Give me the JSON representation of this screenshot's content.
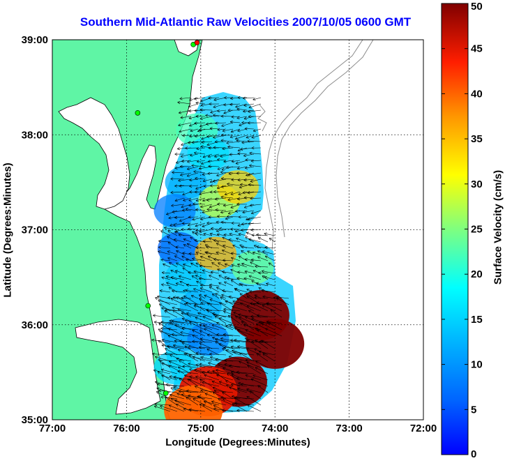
{
  "chart_data": {
    "type": "heatmap",
    "title": "Southern Mid-Atlantic Raw Velocities 2007/10/05 0600 GMT",
    "xlabel": "Longitude (Degrees:Minutes)",
    "ylabel": "Latitude (Degrees:Minutes)",
    "x_ticks": [
      {
        "value": -77,
        "label": "77:00"
      },
      {
        "value": -76,
        "label": "76:00"
      },
      {
        "value": -75,
        "label": "75:00"
      },
      {
        "value": -74,
        "label": "74:00"
      },
      {
        "value": -73,
        "label": "73:00"
      },
      {
        "value": -72,
        "label": "72:00"
      }
    ],
    "y_ticks": [
      {
        "value": 35,
        "label": "35:00"
      },
      {
        "value": 36,
        "label": "36:00"
      },
      {
        "value": 37,
        "label": "37:00"
      },
      {
        "value": 38,
        "label": "38:00"
      },
      {
        "value": 39,
        "label": "39:00"
      }
    ],
    "xlim": [
      -77,
      -72
    ],
    "ylim": [
      35,
      39
    ],
    "grid": true,
    "grid_style": "dotted",
    "colorbar": {
      "label": "Surface Velocity (cm/s)",
      "range": [
        0,
        50
      ],
      "ticks": [
        0,
        5,
        10,
        15,
        20,
        25,
        30,
        35,
        40,
        45,
        50
      ],
      "colormap": "jet",
      "placement": "right"
    },
    "land_color": "#5ff5a5",
    "coast_color": "#000000",
    "bathymetry_color": "#8c8c8c",
    "vector_color": "#000000",
    "velocity_regions": [
      {
        "lon": -75.05,
        "lat": 38.05,
        "speed": 22
      },
      {
        "lon": -74.9,
        "lat": 37.8,
        "speed": 16
      },
      {
        "lon": -75.2,
        "lat": 37.5,
        "speed": 12
      },
      {
        "lon": -75.35,
        "lat": 37.2,
        "speed": 8
      },
      {
        "lon": -74.75,
        "lat": 37.3,
        "speed": 28
      },
      {
        "lon": -74.5,
        "lat": 37.45,
        "speed": 34
      },
      {
        "lon": -75.3,
        "lat": 36.8,
        "speed": 6
      },
      {
        "lon": -75.2,
        "lat": 36.5,
        "speed": 14
      },
      {
        "lon": -74.8,
        "lat": 36.75,
        "speed": 36
      },
      {
        "lon": -74.3,
        "lat": 36.6,
        "speed": 24
      },
      {
        "lon": -75.0,
        "lat": 36.2,
        "speed": 12
      },
      {
        "lon": -75.25,
        "lat": 35.9,
        "speed": 11
      },
      {
        "lon": -74.9,
        "lat": 35.85,
        "speed": 8
      },
      {
        "lon": -75.35,
        "lat": 35.55,
        "speed": 15
      },
      {
        "lon": -74.2,
        "lat": 36.1,
        "speed": 50
      },
      {
        "lon": -74.0,
        "lat": 35.8,
        "speed": 50
      },
      {
        "lon": -74.5,
        "lat": 35.4,
        "speed": 50
      },
      {
        "lon": -74.9,
        "lat": 35.3,
        "speed": 45
      },
      {
        "lon": -75.1,
        "lat": 35.1,
        "speed": 40
      }
    ],
    "radar_sites": [
      {
        "lon": -75.1,
        "lat": 38.95,
        "color": "#00ff00"
      },
      {
        "lon": -75.05,
        "lat": 38.97,
        "color": "#ff0000"
      },
      {
        "lon": -75.85,
        "lat": 38.23,
        "color": "#00ff00"
      },
      {
        "lon": -75.71,
        "lat": 36.2,
        "color": "#00ff00"
      },
      {
        "lon": -75.47,
        "lat": 35.28,
        "color": "#00ff00"
      }
    ]
  }
}
